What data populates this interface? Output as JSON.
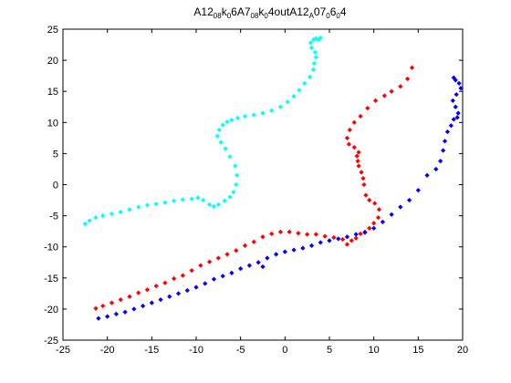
{
  "chart_data": {
    "type": "scatter",
    "title": "A12_{08}k_{0}6A7_{08}k_{0}4outA12_{A}07_{0}6_{0}4",
    "title_parts": [
      {
        "text": "A12",
        "sub": false
      },
      {
        "text": "08",
        "sub": true
      },
      {
        "text": "k",
        "sub": false
      },
      {
        "text": "0",
        "sub": true
      },
      {
        "text": "6A7",
        "sub": false
      },
      {
        "text": "08",
        "sub": true
      },
      {
        "text": "k",
        "sub": false
      },
      {
        "text": "0",
        "sub": true
      },
      {
        "text": "4outA12",
        "sub": false
      },
      {
        "text": "A",
        "sub": true
      },
      {
        "text": "07",
        "sub": false
      },
      {
        "text": "0",
        "sub": true
      },
      {
        "text": "6",
        "sub": false
      },
      {
        "text": "0",
        "sub": true
      },
      {
        "text": "4",
        "sub": false
      }
    ],
    "xlabel": "",
    "ylabel": "",
    "xlim": [
      -25,
      20
    ],
    "ylim": [
      -25,
      25
    ],
    "xticks": [
      -25,
      -20,
      -15,
      -10,
      -5,
      0,
      5,
      10,
      15,
      20
    ],
    "yticks": [
      -25,
      -20,
      -15,
      -10,
      -5,
      0,
      5,
      10,
      15,
      20,
      25
    ],
    "grid": false,
    "marker": "diamond",
    "series": [
      {
        "color": "#00ffff",
        "x": [
          -22.5,
          -22,
          -21.3,
          -20.5,
          -19.5,
          -18.5,
          -17.5,
          -16.5,
          -15.5,
          -14.5,
          -13.5,
          -12.5,
          -11.5,
          -10.5,
          -9.8,
          -9.2,
          -8.5,
          -8,
          -7.5,
          -6.8,
          -6.2,
          -5.8,
          -5.5,
          -5.4,
          -5.6,
          -6.2,
          -6.7,
          -7.2,
          -7.6,
          -7.4,
          -7,
          -6.5,
          -6,
          -5.3,
          -4.5,
          -3.5,
          -2.5,
          -1.5,
          -0.5,
          0.3,
          1,
          1.6,
          2.2,
          2.8,
          3.2,
          3.3,
          3.5,
          3.4,
          3,
          2.9,
          3.2,
          3.5,
          3.8,
          4
        ],
        "y": [
          -6.3,
          -5.8,
          -5.3,
          -5,
          -4.7,
          -4.4,
          -4,
          -3.6,
          -3.3,
          -3.1,
          -2.9,
          -2.6,
          -2.4,
          -2.3,
          -2.1,
          -2.5,
          -3.2,
          -3.5,
          -3.2,
          -2.6,
          -2,
          -1.2,
          0,
          1.5,
          3,
          4.5,
          5.8,
          6.8,
          7.8,
          8.8,
          9.6,
          10.1,
          10.4,
          10.7,
          11,
          11.2,
          11.5,
          11.9,
          12.5,
          13.3,
          14.2,
          15.2,
          16.3,
          17.3,
          18.5,
          19.5,
          20.5,
          21.3,
          22,
          22.8,
          23.3,
          23.5,
          23.3,
          23.6
        ]
      },
      {
        "color": "#ff0000",
        "x": [
          -21.3,
          -20.5,
          -19.5,
          -18.5,
          -17.5,
          -16.5,
          -15.5,
          -14.5,
          -13.5,
          -12.5,
          -11.5,
          -10.5,
          -9.5,
          -8.5,
          -7.5,
          -6.5,
          -5.5,
          -4.5,
          -3.5,
          -2.5,
          -1.5,
          -0.5,
          0.5,
          1.5,
          2.5,
          3.5,
          4.5,
          5.5,
          6.5,
          7,
          7.5,
          8,
          8.5,
          9,
          9.5,
          10,
          10.5,
          10.6,
          10.1,
          9.5,
          9.1,
          8.9,
          8.8,
          8.6,
          8.3,
          8.2,
          8.1,
          8.3,
          7.8,
          7.2,
          7,
          7.3,
          7.8,
          8.5,
          9.3,
          10.2,
          11.2,
          12,
          13,
          13.8,
          14.3
        ],
        "y": [
          -19.9,
          -19.5,
          -19,
          -18.5,
          -18,
          -17.4,
          -16.9,
          -16.3,
          -15.8,
          -15.1,
          -14.6,
          -13.8,
          -13,
          -12.4,
          -11.8,
          -11.2,
          -10.6,
          -9.8,
          -9.2,
          -8.4,
          -7.9,
          -7.6,
          -7.6,
          -7.8,
          -8,
          -8,
          -8.3,
          -8.5,
          -8.8,
          -9.6,
          -9,
          -8.6,
          -7.9,
          -7.6,
          -7,
          -6.2,
          -5.3,
          -4,
          -3,
          -2.5,
          -1.7,
          0,
          1,
          2,
          3,
          3.8,
          4.6,
          5.2,
          6,
          6.5,
          7.5,
          8.8,
          10,
          11,
          12.3,
          13.5,
          14.3,
          15,
          15.8,
          17,
          18.8
        ]
      },
      {
        "color": "#0000ff",
        "x": [
          -21,
          -20,
          -19,
          -18,
          -17,
          -16,
          -15,
          -14,
          -13,
          -12,
          -11,
          -10,
          -9,
          -8,
          -7,
          -6,
          -5,
          -4,
          -3,
          -2.5,
          -2,
          -1,
          0,
          1,
          2,
          3,
          4,
          5,
          6,
          7,
          8,
          9,
          10,
          11,
          12,
          13,
          14,
          15,
          16,
          17,
          17.5,
          17.8,
          18,
          18.3,
          18.7,
          19,
          19.4,
          19.5,
          19.2,
          18.9,
          19.3,
          19.8,
          19.6,
          19.2,
          19
        ],
        "y": [
          -21.5,
          -21.2,
          -20.8,
          -20.5,
          -20,
          -19.5,
          -19,
          -18.5,
          -18,
          -17.5,
          -17,
          -16.5,
          -15.9,
          -15.2,
          -14.7,
          -14.2,
          -13.5,
          -13,
          -12.5,
          -13.2,
          -11.8,
          -11.2,
          -10.8,
          -10.5,
          -10.2,
          -9.8,
          -9.3,
          -9,
          -8.7,
          -8.4,
          -8,
          -7.7,
          -7,
          -6,
          -4.8,
          -3.6,
          -2.5,
          -0.9,
          1.5,
          2.5,
          3.8,
          5.5,
          7,
          8.5,
          9.5,
          10.5,
          10.8,
          11.5,
          12.5,
          13.5,
          14.5,
          15.5,
          16.3,
          16.8,
          17.2
        ]
      }
    ]
  }
}
